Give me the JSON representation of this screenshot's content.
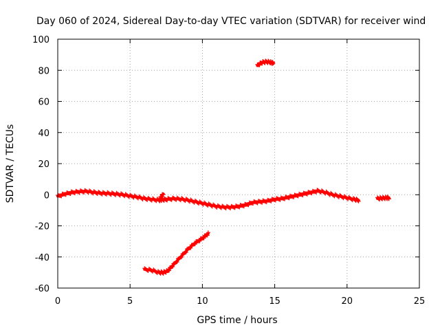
{
  "chart_data": {
    "type": "scatter",
    "title": "Day 060 of 2024, Sidereal Day-to-day VTEC variation (SDTVAR) for receiver wind",
    "xlabel": "GPS time / hours",
    "ylabel": "SDTVAR / TECUs",
    "xlim": [
      0,
      25
    ],
    "ylim": [
      -60,
      100
    ],
    "xticks": [
      "0",
      "5",
      "10",
      "15",
      "20",
      "25"
    ],
    "yticks": [
      "-60",
      "-40",
      "-20",
      "0",
      "20",
      "40",
      "60",
      "80",
      "100"
    ],
    "grid": true,
    "marker": "plus",
    "color": "#ff0000",
    "series": [
      {
        "name": "main",
        "x": [
          0,
          0.5,
          1,
          1.5,
          2,
          2.5,
          3,
          3.5,
          4,
          4.5,
          5,
          5.5,
          6,
          6.5,
          7,
          7.2,
          7.5,
          8,
          8.5,
          9,
          9.5,
          10,
          10.5,
          11,
          11.5,
          12,
          12.5,
          13,
          13.5,
          14,
          14.5,
          15,
          15.5,
          16,
          16.5,
          17,
          17.5,
          18,
          18.5,
          19,
          19.5,
          20,
          20.5,
          20.8
        ],
        "y": [
          -1,
          0.5,
          1.5,
          2,
          2.2,
          1.5,
          1,
          0.8,
          0.5,
          0,
          -0.8,
          -1.5,
          -2.5,
          -3,
          -3.5,
          -3.2,
          -3,
          -2.5,
          -2.8,
          -3.5,
          -4.5,
          -5.5,
          -6.5,
          -7.5,
          -8,
          -8,
          -7.5,
          -6.5,
          -5,
          -4.5,
          -4,
          -3,
          -2.5,
          -1.5,
          -0.5,
          0.5,
          1.5,
          2.5,
          1.5,
          0,
          -1,
          -2,
          -3,
          -3.5
        ]
      },
      {
        "name": "spike",
        "x": [
          7.1,
          7.3
        ],
        "y": [
          -2,
          0.5
        ]
      },
      {
        "name": "late",
        "x": [
          22.1,
          22.4,
          22.7,
          22.9
        ],
        "y": [
          -2.5,
          -2.2,
          -2,
          -2
        ]
      },
      {
        "name": "lower",
        "x": [
          6,
          6.5,
          7,
          7.3,
          7.6,
          8,
          8.5,
          9,
          9.5,
          10,
          10.4
        ],
        "y": [
          -48,
          -48.5,
          -50,
          -50,
          -49,
          -45,
          -40,
          -35,
          -31,
          -28,
          -25
        ]
      },
      {
        "name": "upper",
        "x": [
          13.8,
          14.1,
          14.4,
          14.7,
          14.9
        ],
        "y": [
          83,
          85,
          85.5,
          85.2,
          84.5
        ]
      }
    ]
  }
}
